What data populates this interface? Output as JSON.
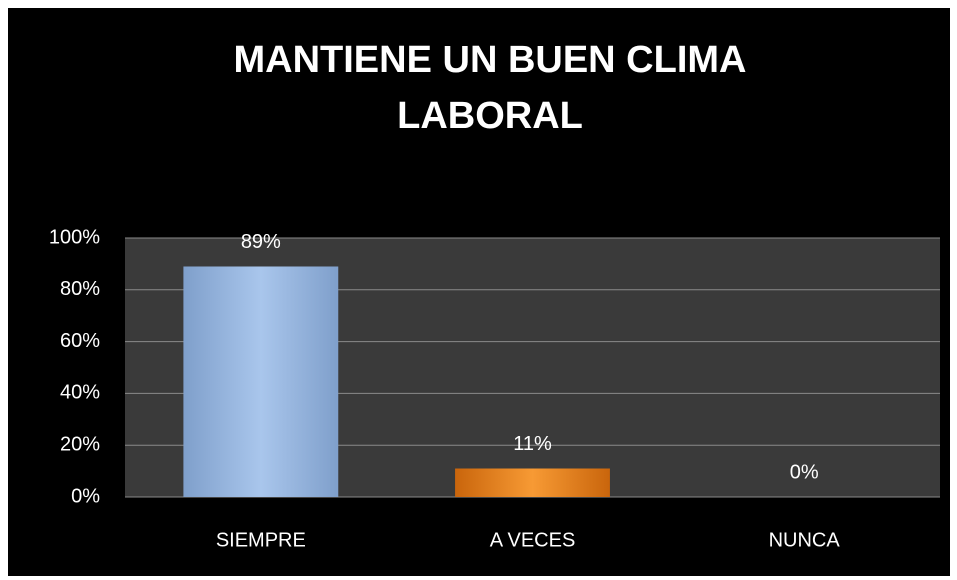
{
  "chart_data": {
    "type": "bar",
    "title": [
      "MANTIENE UN BUEN CLIMA",
      "LABORAL"
    ],
    "categories": [
      "SIEMPRE",
      "A VECES",
      "NUNCA"
    ],
    "values": [
      89,
      11,
      0
    ],
    "value_labels": [
      "89%",
      "11%",
      "0%"
    ],
    "colors": [
      "#9bbbe3",
      "#f08a1c",
      "#9bbbe3"
    ],
    "ylim": [
      0,
      100
    ],
    "yticks": [
      {
        "value": 0,
        "label": "0%"
      },
      {
        "value": 20,
        "label": "20%"
      },
      {
        "value": 40,
        "label": "40%"
      },
      {
        "value": 60,
        "label": "60%"
      },
      {
        "value": 80,
        "label": "80%"
      },
      {
        "value": 100,
        "label": "100%"
      }
    ],
    "grid": true
  }
}
